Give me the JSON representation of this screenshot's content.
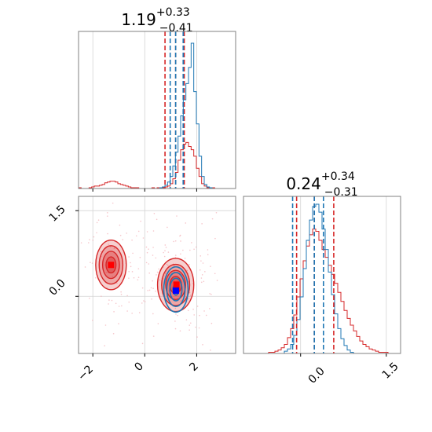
{
  "chart_data": {
    "type": "corner",
    "parameters": [
      "p0",
      "p1"
    ],
    "titles": {
      "p0": {
        "median": "1.19",
        "plus": "+0.33",
        "minus": "−0.41"
      },
      "p1": {
        "median": "0.24",
        "plus": "+0.34",
        "minus": "−0.31"
      }
    },
    "ticks": {
      "p0_x": [
        "−2",
        "0",
        "2"
      ],
      "p1_y": [
        "0.0",
        "1.5"
      ],
      "p1_x": [
        "0.0",
        "1.5"
      ]
    },
    "ranges": {
      "p0": [
        -2.55,
        3.5
      ],
      "p1": [
        -1.0,
        1.75
      ]
    },
    "series": [
      {
        "name": "",
        "color": "#d62728"
      },
      {
        "name": "",
        "color": "#1f77b4"
      }
    ],
    "quantile_lines": {
      "p0": {
        "red": [
          0.78,
          1.19,
          1.52
        ],
        "blue": [
          0.98,
          1.19,
          1.48
        ]
      },
      "p1": {
        "red": [
          -0.07,
          0.24,
          0.58
        ],
        "blue": [
          -0.14,
          0.24,
          0.4
        ]
      }
    },
    "marginals": {
      "p0": {
        "bins": [
          -2.55,
          3.5
        ],
        "red": [
          1,
          0,
          0,
          0,
          1,
          2,
          3,
          3,
          4,
          5,
          7,
          8,
          9,
          9,
          8,
          6,
          5,
          4,
          3,
          2,
          1,
          1,
          1,
          0,
          0,
          0,
          0,
          0,
          1,
          0,
          1,
          0,
          1,
          2,
          3,
          6,
          12,
          20,
          35,
          48,
          55,
          57,
          52,
          48,
          40,
          25,
          15,
          6,
          3,
          1,
          0,
          1,
          0,
          0,
          0,
          0,
          0,
          0,
          0,
          0
        ],
        "blue": [
          0,
          0,
          0,
          0,
          0,
          0,
          0,
          0,
          0,
          0,
          0,
          0,
          0,
          0,
          0,
          0,
          0,
          0,
          0,
          0,
          0,
          0,
          0,
          0,
          0,
          0,
          0,
          0,
          0,
          0,
          0,
          1,
          2,
          4,
          8,
          15,
          28,
          45,
          65,
          90,
          110,
          130,
          150,
          180,
          120,
          80,
          40,
          15,
          5,
          2,
          1,
          0,
          0,
          0,
          0,
          0,
          0,
          0,
          0,
          0
        ]
      },
      "p1": {
        "bins": [
          -1.0,
          1.75
        ],
        "red": [
          0,
          0,
          0,
          0,
          0,
          0,
          0,
          0,
          1,
          1,
          2,
          3,
          5,
          8,
          14,
          22,
          34,
          50,
          66,
          82,
          95,
          105,
          110,
          108,
          100,
          92,
          85,
          78,
          70,
          62,
          54,
          46,
          38,
          31,
          25,
          20,
          15,
          11,
          8,
          6,
          4,
          3,
          2,
          1,
          1,
          1,
          0,
          0,
          0,
          0
        ],
        "blue": [
          0,
          0,
          0,
          0,
          0,
          0,
          0,
          0,
          0,
          0,
          0,
          0,
          0,
          2,
          4,
          8,
          16,
          30,
          50,
          75,
          100,
          118,
          130,
          132,
          125,
          110,
          92,
          72,
          52,
          35,
          22,
          13,
          7,
          3,
          1,
          0,
          0,
          0,
          0,
          0,
          0,
          0,
          0,
          0,
          0,
          0,
          0,
          0,
          0,
          0
        ]
      }
    },
    "joint": {
      "red_modes": [
        {
          "center": [
            1.19,
            0.2
          ],
          "sigma": [
            0.45,
            0.3
          ]
        },
        {
          "center": [
            -1.3,
            0.55
          ],
          "sigma": [
            0.38,
            0.28
          ]
        }
      ],
      "blue_modes": [
        {
          "center": [
            1.2,
            0.12
          ],
          "sigma": [
            0.26,
            0.22
          ]
        }
      ],
      "red_marker": [
        -1.3,
        0.55
      ],
      "red_marker_main": [
        1.22,
        0.15
      ],
      "blue_marker": [
        1.2,
        0.1
      ]
    }
  }
}
